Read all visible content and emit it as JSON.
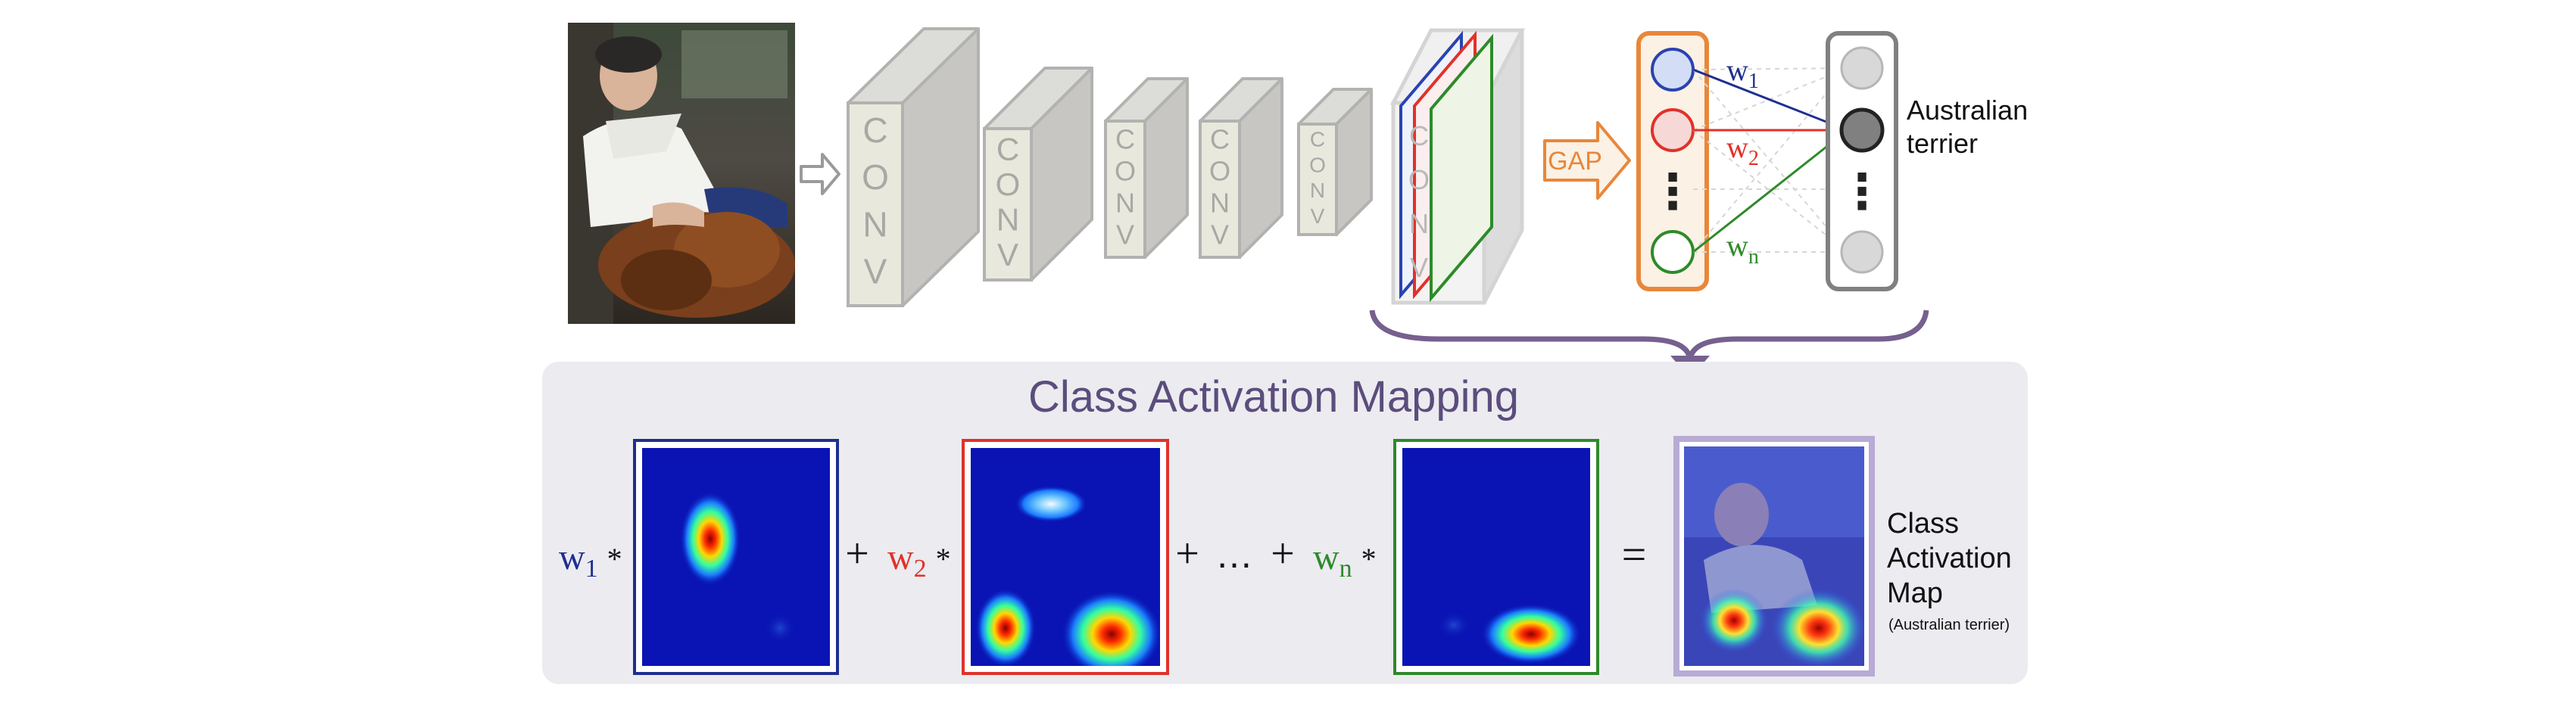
{
  "network": {
    "conv_label": "CONV",
    "gap_label": "GAP",
    "dots": "⋮",
    "class_label_line1": "Australian",
    "class_label_line2": "terrier",
    "weights": [
      {
        "base": "w",
        "sub": "1",
        "color": "#1f2f8f"
      },
      {
        "base": "w",
        "sub": "2",
        "color": "#e0322a"
      },
      {
        "base": "w",
        "sub": "n",
        "color": "#2e8a2a"
      }
    ]
  },
  "cam": {
    "title": "Class Activation Mapping",
    "times": "*",
    "plus": "+",
    "ellipsis": "…",
    "equals": "=",
    "result_line1": "Class",
    "result_line2": "Activation",
    "result_line3": "Map",
    "result_caption": "(Australian terrier)"
  },
  "colors": {
    "conv_face": "#e9e8dd",
    "conv_side": "#c7c6c2",
    "gap_orange": "#e8873a",
    "panel_bg": "#ecebf0",
    "title_purple": "#5b4d7c",
    "brace_purple": "#76608f",
    "heatmap_bg": "#0a14b4",
    "blue": "#1f2f8f",
    "red": "#e0322a",
    "green": "#2e8a2a"
  }
}
